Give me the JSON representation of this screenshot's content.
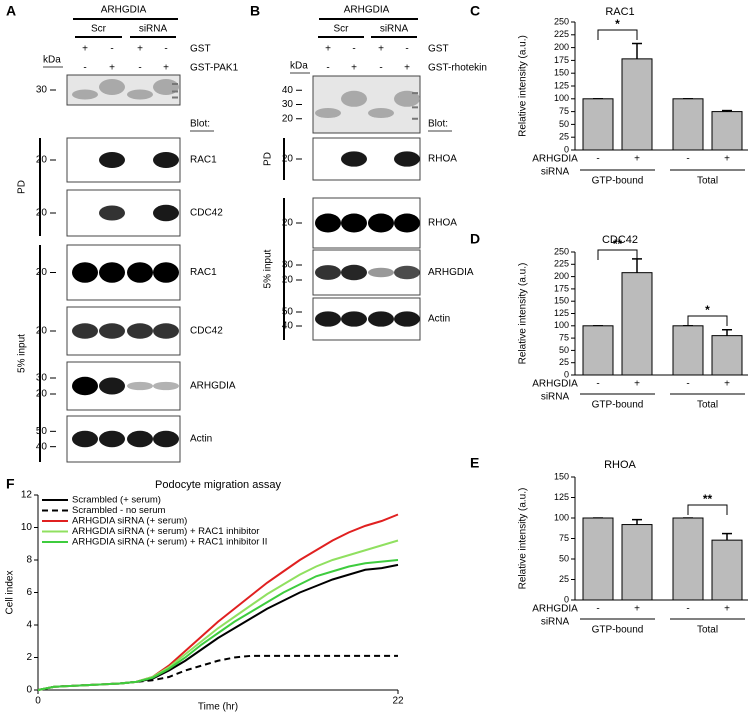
{
  "panel_a": {
    "letter": "A",
    "header": "ARHGDIA",
    "groups": [
      "Scr",
      "siRNA"
    ],
    "treatments": [
      {
        "signs": [
          "+",
          "-",
          "+",
          "-"
        ],
        "label": "GST"
      },
      {
        "signs": [
          "-",
          "+",
          "-",
          "+"
        ],
        "label": "GST-PAK1"
      }
    ],
    "kda": "kDa",
    "blot_heading": "Blot:",
    "blots": [
      {
        "markers": [
          "30"
        ]
      },
      {
        "markers": [
          "20"
        ],
        "label": "RAC1"
      },
      {
        "markers": [
          "20"
        ],
        "label": "CDC42"
      },
      {
        "markers": [
          "20"
        ],
        "label": "RAC1"
      },
      {
        "markers": [
          "20"
        ],
        "label": "CDC42"
      },
      {
        "markers": [
          "30",
          "20"
        ],
        "label": "ARHGDIA"
      },
      {
        "markers": [
          "50",
          "40"
        ],
        "label": "Actin"
      }
    ],
    "sections": [
      "PD",
      "5% input"
    ]
  },
  "panel_b": {
    "letter": "B",
    "header": "ARHGDIA",
    "groups": [
      "Scr",
      "siRNA"
    ],
    "treatments": [
      {
        "signs": [
          "+",
          "-",
          "+",
          "-"
        ],
        "label": "GST"
      },
      {
        "signs": [
          "-",
          "+",
          "-",
          "+"
        ],
        "label": "GST-rhotekin"
      }
    ],
    "kda": "kDa",
    "blot_heading": "Blot:",
    "blots": [
      {
        "markers": [
          "40",
          "30",
          "20"
        ]
      },
      {
        "markers": [
          "20"
        ],
        "label": "RHOA"
      },
      {
        "markers": [
          "20"
        ],
        "label": "RHOA"
      },
      {
        "markers": [
          "30",
          "20"
        ],
        "label": "ARHGDIA"
      },
      {
        "markers": [
          "50",
          "40"
        ],
        "label": "Actin"
      }
    ],
    "sections": [
      "PD",
      "5% input"
    ]
  },
  "chart_data": [
    {
      "type": "bar",
      "letter": "C",
      "title": "RAC1",
      "y_label": "Relative intensity (a.u.)",
      "categories": [
        "-",
        "+",
        "-",
        "+"
      ],
      "values": [
        100,
        178,
        100,
        75
      ],
      "errors": [
        0,
        30,
        0,
        2
      ],
      "color": "#bbbbbb",
      "ylim": [
        0,
        250
      ],
      "yticks": [
        0,
        25,
        50,
        75,
        100,
        125,
        150,
        175,
        200,
        225,
        250
      ],
      "row_label": [
        "ARHGDIA",
        "siRNA"
      ],
      "groups": [
        "GTP-bound",
        "Total"
      ],
      "annotations": [
        "*"
      ]
    },
    {
      "type": "bar",
      "letter": "D",
      "title": "CDC42",
      "y_label": "Relative intensity (a.u.)",
      "categories": [
        "-",
        "+",
        "-",
        "+"
      ],
      "values": [
        100,
        208,
        100,
        80
      ],
      "errors": [
        0,
        28,
        0,
        12
      ],
      "color": "#bbbbbb",
      "ylim": [
        0,
        250
      ],
      "yticks": [
        0,
        25,
        50,
        75,
        100,
        125,
        150,
        175,
        200,
        225,
        250
      ],
      "row_label": [
        "ARHGDIA",
        "siRNA"
      ],
      "groups": [
        "GTP-bound",
        "Total"
      ],
      "annotations": [
        "**",
        "*"
      ]
    },
    {
      "type": "bar",
      "letter": "E",
      "title": "RHOA",
      "y_label": "Relative intensity (a.u.)",
      "categories": [
        "-",
        "+",
        "-",
        "+"
      ],
      "values": [
        100,
        92,
        100,
        73
      ],
      "errors": [
        0,
        6,
        0,
        8
      ],
      "color": "#bbbbbb",
      "ylim": [
        0,
        150
      ],
      "yticks": [
        0,
        25,
        50,
        75,
        100,
        125,
        150
      ],
      "row_label": [
        "ARHGDIA",
        "siRNA"
      ],
      "groups": [
        "GTP-bound",
        "Total"
      ],
      "annotations": [
        "**"
      ]
    },
    {
      "type": "line",
      "letter": "F",
      "title": "Podocyte migration assay",
      "x_label": "Time (hr)",
      "y_label": "Cell index",
      "x": [
        0,
        1,
        2,
        3,
        4,
        5,
        6,
        7,
        8,
        9,
        10,
        11,
        12,
        13,
        14,
        15,
        16,
        17,
        18,
        19,
        20,
        21,
        22
      ],
      "xlim": [
        0,
        22
      ],
      "xticks": [
        0,
        22
      ],
      "ylim": [
        0,
        12
      ],
      "yticks": [
        0,
        2,
        4,
        6,
        8,
        10,
        12
      ],
      "series": [
        {
          "name": "Scrambled (+ serum)",
          "color": "#000000",
          "dashed": false,
          "values": [
            0,
            0.2,
            0.25,
            0.3,
            0.35,
            0.4,
            0.5,
            0.7,
            1.2,
            1.8,
            2.5,
            3.2,
            3.8,
            4.4,
            5,
            5.5,
            6,
            6.4,
            6.8,
            7.1,
            7.4,
            7.5,
            7.7
          ]
        },
        {
          "name": "Scrambled - no serum",
          "color": "#000000",
          "dashed": true,
          "values": [
            0,
            0.2,
            0.25,
            0.3,
            0.35,
            0.4,
            0.5,
            0.6,
            0.8,
            1.2,
            1.5,
            1.8,
            2,
            2.1,
            2.1,
            2.1,
            2.1,
            2.1,
            2.1,
            2.1,
            2.1,
            2.1,
            2.1
          ]
        },
        {
          "name": "ARHGDIA siRNA (+ serum)",
          "color": "#e02020",
          "dashed": false,
          "values": [
            0,
            0.2,
            0.25,
            0.3,
            0.35,
            0.4,
            0.5,
            0.8,
            1.5,
            2.4,
            3.3,
            4.2,
            5,
            5.8,
            6.6,
            7.3,
            8,
            8.6,
            9.2,
            9.7,
            10.1,
            10.4,
            10.8
          ]
        },
        {
          "name": "ARHGDIA siRNA (+ serum) + RAC1 inhibitor",
          "color": "#90e060",
          "dashed": false,
          "values": [
            0,
            0.2,
            0.25,
            0.3,
            0.35,
            0.4,
            0.5,
            0.8,
            1.4,
            2.2,
            3,
            3.8,
            4.5,
            5.2,
            5.9,
            6.5,
            7.1,
            7.6,
            8,
            8.3,
            8.6,
            8.9,
            9.2
          ]
        },
        {
          "name": "ARHGDIA siRNA (+ serum) + RAC1 inhibitor II",
          "color": "#3ecc3e",
          "dashed": false,
          "values": [
            0,
            0.2,
            0.25,
            0.3,
            0.35,
            0.4,
            0.5,
            0.75,
            1.3,
            2,
            2.8,
            3.5,
            4.2,
            4.8,
            5.4,
            6,
            6.5,
            7,
            7.3,
            7.6,
            7.8,
            7.9,
            8
          ]
        }
      ]
    }
  ]
}
